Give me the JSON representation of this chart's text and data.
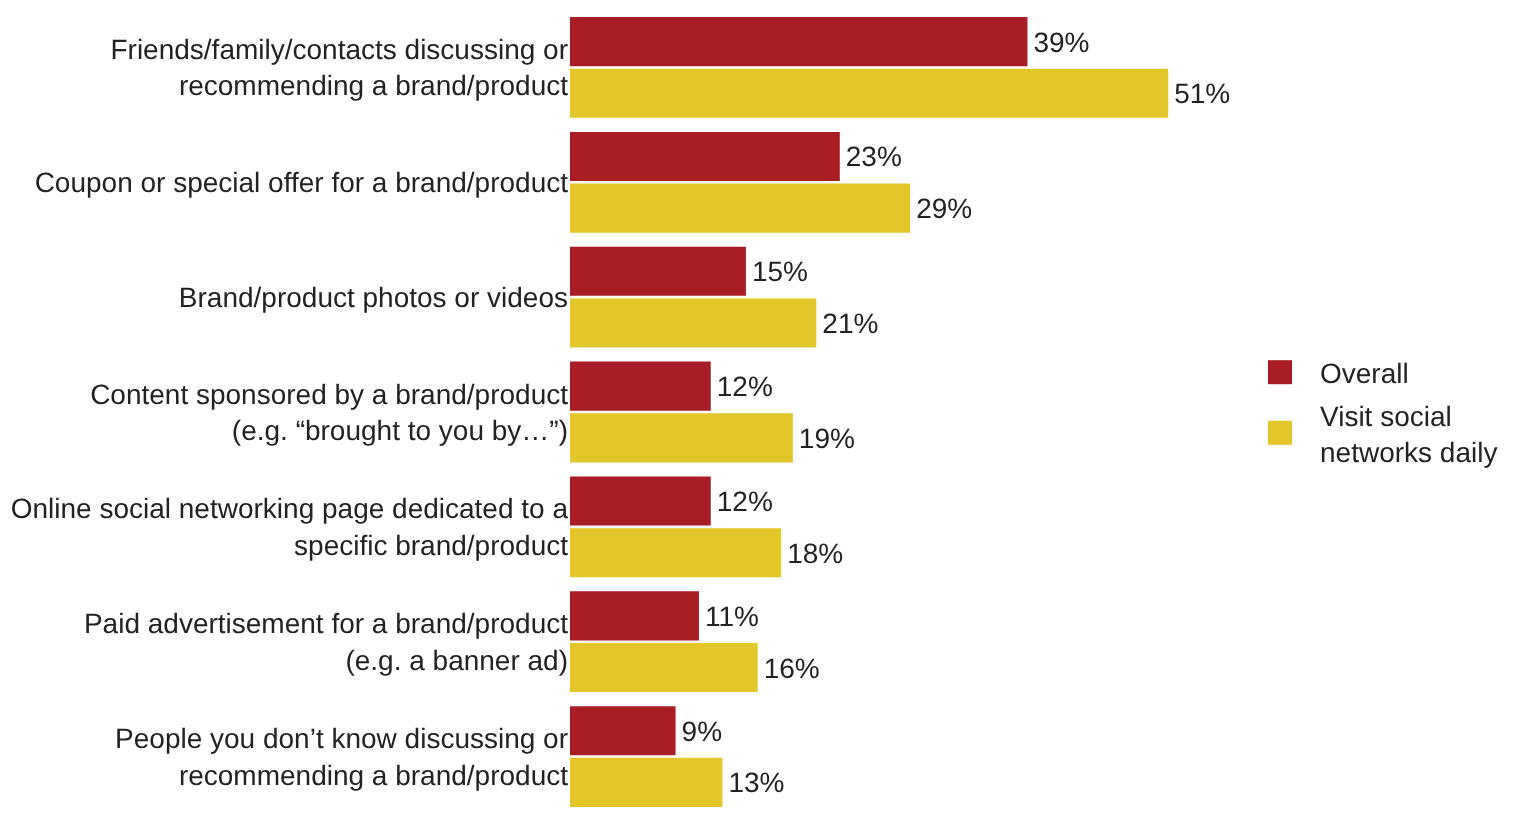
{
  "chart_data": {
    "type": "bar",
    "orientation": "horizontal",
    "legend": "right",
    "categories": [
      "Friends/family/contacts discussing or\nrecommending a brand/product",
      "Coupon or special offer for a brand/product",
      "Brand/product photos or videos",
      "Content sponsored by a brand/product\n(e.g. “brought to you by…”)",
      "Online social networking page dedicated to a\nspecific brand/product",
      "Paid advertisement for a brand/product\n(e.g. a banner ad)",
      "People you don’t know discussing or\nrecommending a brand/product"
    ],
    "series": [
      {
        "name": "Overall",
        "color": "#a81e24",
        "values": [
          39,
          23,
          15,
          12,
          12,
          11,
          9
        ],
        "value_labels": [
          "39%",
          "23%",
          "15%",
          "12%",
          "12%",
          "11%",
          "9%"
        ]
      },
      {
        "name": "Visit social\nnetworks daily",
        "color": "#e2c62a",
        "values": [
          51,
          29,
          21,
          19,
          18,
          16,
          13
        ],
        "value_labels": [
          "51%",
          "29%",
          "21%",
          "19%",
          "18%",
          "16%",
          "13%"
        ]
      }
    ]
  }
}
